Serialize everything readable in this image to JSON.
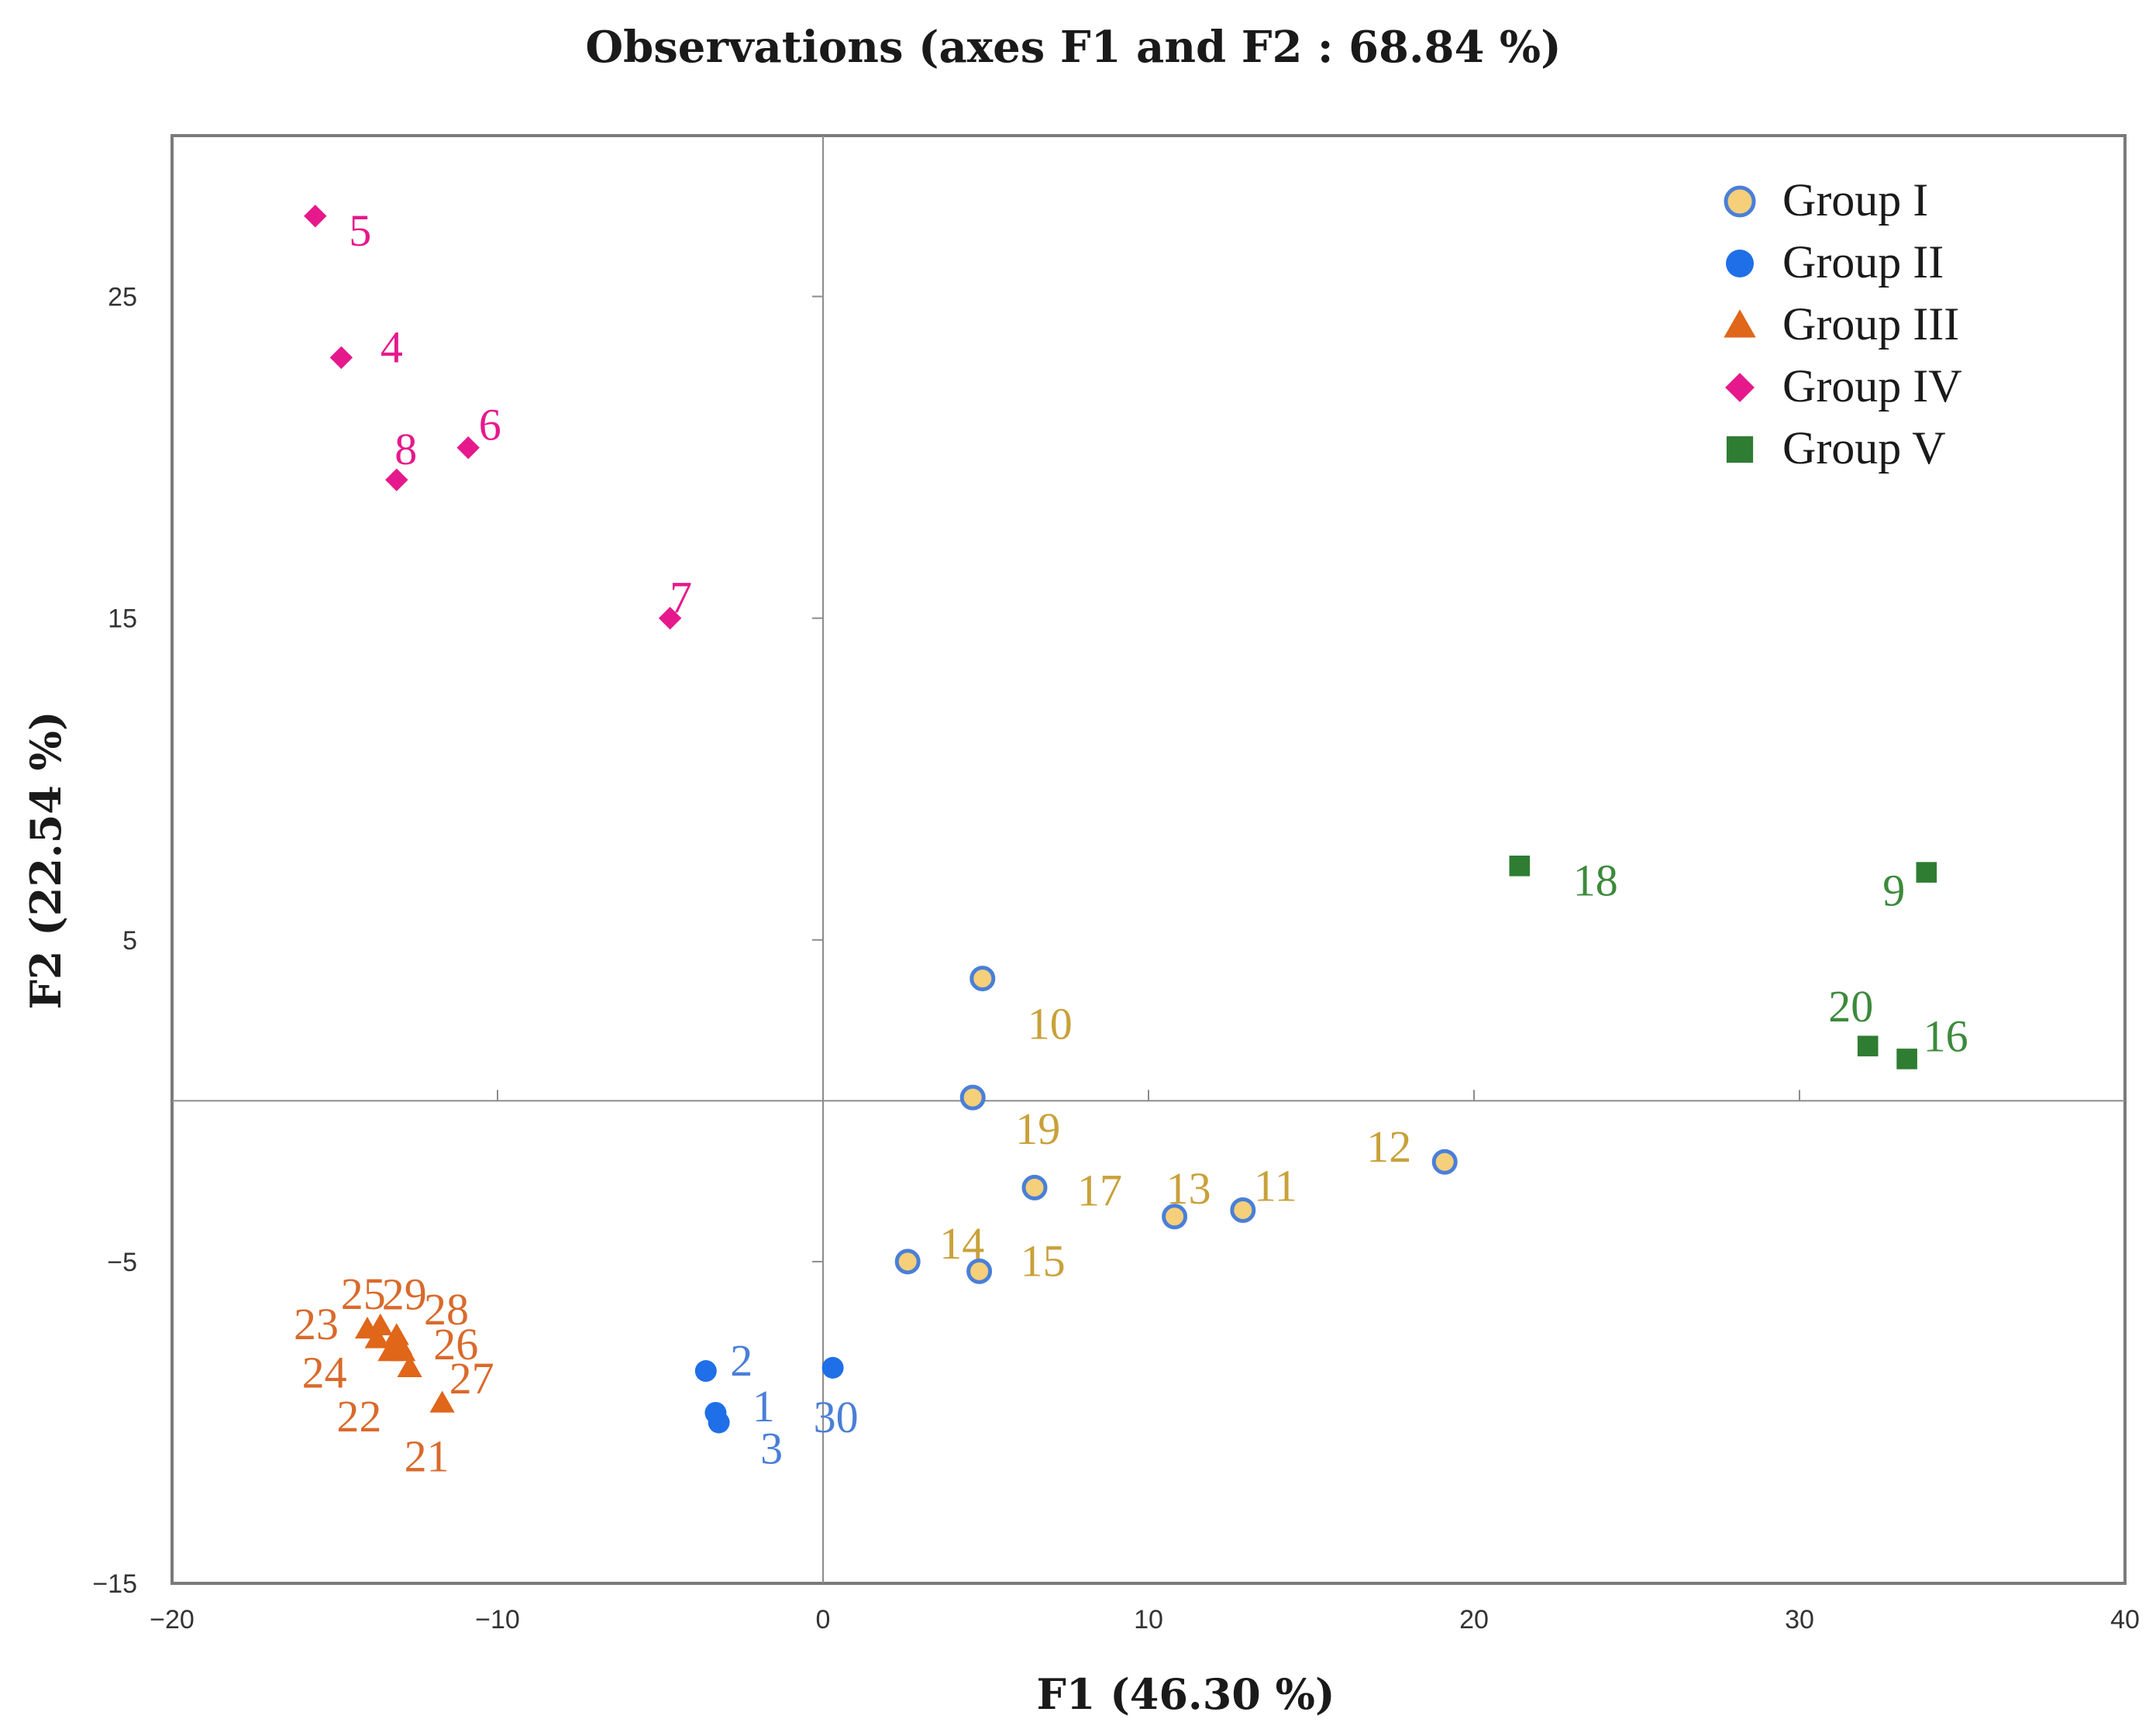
{
  "chart_data": {
    "type": "scatter",
    "title": "Observations (axes F1 and F2 : 68.84 %)",
    "xlabel": "F1 (46.30 %)",
    "ylabel": "F2 (22.54 %)",
    "xlim": [
      -20,
      40
    ],
    "ylim": [
      -15,
      30
    ],
    "xticks": [
      -20,
      -10,
      0,
      10,
      20,
      30,
      40
    ],
    "yticks": [
      -15,
      -5,
      5,
      15,
      25
    ],
    "xtick_labels": [
      "−20",
      "−10",
      "0",
      "10",
      "20",
      "30",
      "40"
    ],
    "ytick_labels": [
      "−15",
      "−5",
      "5",
      "15",
      "25"
    ],
    "legend_position": "top-right",
    "series": [
      {
        "name": "Group I",
        "marker": "circle-outlined",
        "color": "#f5cf7a",
        "edge_color": "#4a7fd8",
        "label_color": "#c9a13a",
        "points": [
          {
            "label": "10",
            "x": 4.9,
            "y": 3.8
          },
          {
            "label": "19",
            "x": 4.6,
            "y": 0.1
          },
          {
            "label": "17",
            "x": 6.5,
            "y": -2.7
          },
          {
            "label": "13",
            "x": 10.8,
            "y": -3.6
          },
          {
            "label": "11",
            "x": 12.9,
            "y": -3.4
          },
          {
            "label": "12",
            "x": 19.1,
            "y": -1.9
          },
          {
            "label": "14",
            "x": 2.6,
            "y": -5.0
          },
          {
            "label": "15",
            "x": 4.8,
            "y": -5.3
          }
        ]
      },
      {
        "name": "Group II",
        "marker": "circle",
        "color": "#1f6fe8",
        "label_color": "#4a7fd8",
        "points": [
          {
            "label": "2",
            "x": -3.6,
            "y": -8.4
          },
          {
            "label": "1",
            "x": -3.3,
            "y": -9.7
          },
          {
            "label": "3",
            "x": -3.2,
            "y": -10.0
          },
          {
            "label": "30",
            "x": 0.3,
            "y": -8.3
          }
        ]
      },
      {
        "name": "Group III",
        "marker": "triangle",
        "color": "#e0661a",
        "label_color": "#d96a2b",
        "points": [
          {
            "label": "23",
            "x": -14.0,
            "y": -7.1
          },
          {
            "label": "24",
            "x": -13.7,
            "y": -7.4
          },
          {
            "label": "22",
            "x": -13.3,
            "y": -7.8
          },
          {
            "label": "25",
            "x": -13.6,
            "y": -7.0
          },
          {
            "label": "29",
            "x": -13.1,
            "y": -7.3
          },
          {
            "label": "28",
            "x": -13.0,
            "y": -7.6
          },
          {
            "label": "26",
            "x": -12.9,
            "y": -7.8
          },
          {
            "label": "27",
            "x": -12.7,
            "y": -8.3
          },
          {
            "label": "21",
            "x": -11.7,
            "y": -9.4
          }
        ]
      },
      {
        "name": "Group IV",
        "marker": "diamond",
        "color": "#e6198c",
        "label_color": "#e6198c",
        "points": [
          {
            "label": "5",
            "x": -15.6,
            "y": 27.5
          },
          {
            "label": "4",
            "x": -14.8,
            "y": 23.1
          },
          {
            "label": "6",
            "x": -10.9,
            "y": 20.3
          },
          {
            "label": "8",
            "x": -13.1,
            "y": 19.3
          },
          {
            "label": "7",
            "x": -4.7,
            "y": 15.0
          }
        ]
      },
      {
        "name": "Group V",
        "marker": "square",
        "color": "#2e7d32",
        "label_color": "#3c8a3c",
        "points": [
          {
            "label": "18",
            "x": 21.4,
            "y": 7.3
          },
          {
            "label": "9",
            "x": 33.9,
            "y": 7.1
          },
          {
            "label": "20",
            "x": 32.1,
            "y": 1.7
          },
          {
            "label": "16",
            "x": 33.3,
            "y": 1.3
          }
        ]
      }
    ]
  }
}
